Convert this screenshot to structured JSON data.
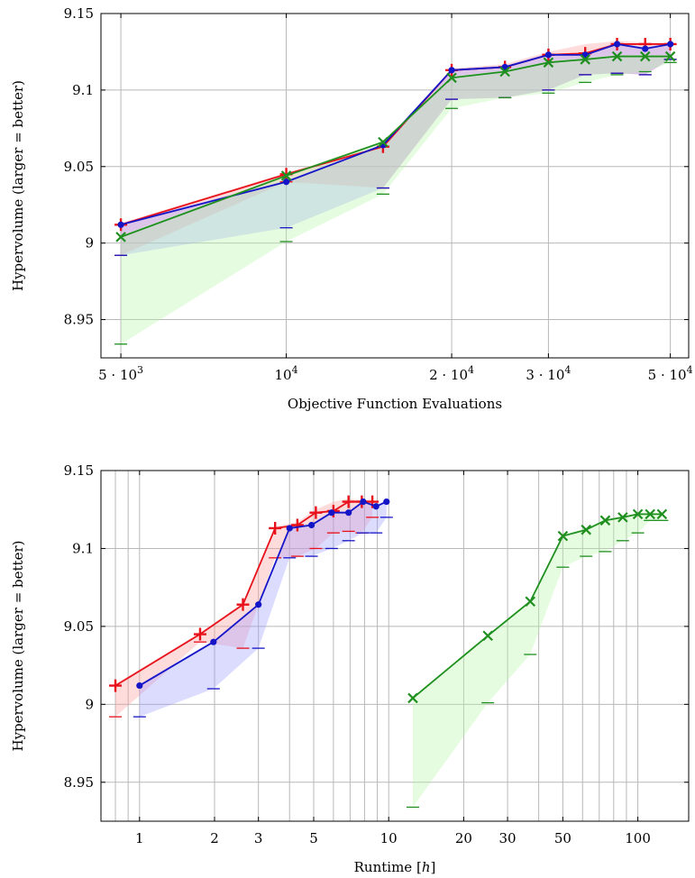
{
  "colors": {
    "red": "#e8101a",
    "blue": "#1515c8",
    "green": "#1f8f1f",
    "red_fill": "#ff9a9a",
    "blue_fill": "#9a9aff",
    "green_fill": "#b8f5a8",
    "grid": "#b8b8b8"
  },
  "chart_data": [
    {
      "type": "line",
      "xscale": "log",
      "xlabel": "Objective Function Evaluations",
      "ylabel": "Hypervolume (larger = better)",
      "xlim": [
        4600,
        54000
      ],
      "ylim": [
        8.925,
        9.15
      ],
      "x_ticks": [
        {
          "value": 5000,
          "label": "5 · 10³"
        },
        {
          "value": 10000,
          "label": "10⁴"
        },
        {
          "value": 20000,
          "label": "2 · 10⁴"
        },
        {
          "value": 30000,
          "label": "3 · 10⁴"
        },
        {
          "value": 50000,
          "label": "5 · 10⁴"
        }
      ],
      "x_grid": [
        5000,
        10000,
        20000,
        30000,
        50000
      ],
      "y_ticks": [
        {
          "value": 8.95,
          "label": "8.95"
        },
        {
          "value": 9.0,
          "label": "9"
        },
        {
          "value": 9.05,
          "label": "9.05"
        },
        {
          "value": 9.1,
          "label": "9.1"
        },
        {
          "value": 9.15,
          "label": "9.15"
        }
      ],
      "grid": true,
      "series": [
        {
          "color_key": "red",
          "marker": "plus",
          "x": [
            5000,
            10000,
            15000,
            20000,
            25000,
            30000,
            35000,
            40000,
            45000,
            50000
          ],
          "y": [
            9.012,
            9.045,
            9.063,
            9.113,
            9.115,
            9.123,
            9.124,
            9.13,
            9.13,
            9.13
          ],
          "lower": [
            8.992,
            9.04,
            9.036,
            9.094,
            9.095,
            9.1,
            9.11,
            9.111,
            9.11,
            9.12
          ],
          "upper": [
            9.013,
            9.046,
            9.064,
            9.114,
            9.117,
            9.125,
            9.13,
            9.132,
            9.131,
            9.131
          ]
        },
        {
          "color_key": "blue",
          "marker": "dot",
          "x": [
            5000,
            10000,
            15000,
            20000,
            25000,
            30000,
            35000,
            40000,
            45000,
            50000
          ],
          "y": [
            9.012,
            9.04,
            9.064,
            9.113,
            9.115,
            9.123,
            9.123,
            9.13,
            9.127,
            9.13
          ],
          "lower": [
            8.992,
            9.01,
            9.036,
            9.094,
            9.095,
            9.1,
            9.11,
            9.111,
            9.11,
            9.12
          ],
          "upper": [
            9.013,
            9.041,
            9.065,
            9.114,
            9.116,
            9.124,
            9.124,
            9.131,
            9.128,
            9.131
          ]
        },
        {
          "color_key": "green",
          "marker": "cross",
          "x": [
            5000,
            10000,
            15000,
            20000,
            25000,
            30000,
            35000,
            40000,
            45000,
            50000
          ],
          "y": [
            9.004,
            9.044,
            9.066,
            9.108,
            9.112,
            9.118,
            9.12,
            9.122,
            9.122,
            9.122
          ],
          "lower": [
            8.934,
            9.001,
            9.032,
            9.088,
            9.095,
            9.098,
            9.105,
            9.11,
            9.112,
            9.118
          ],
          "upper": [
            9.005,
            9.045,
            9.067,
            9.109,
            9.113,
            9.119,
            9.121,
            9.123,
            9.123,
            9.123
          ]
        }
      ]
    },
    {
      "type": "line",
      "xscale": "log",
      "xlabel": "Runtime [h]",
      "ylabel": "Hypervolume (larger = better)",
      "xlim": [
        0.7,
        160
      ],
      "ylim": [
        8.925,
        9.15
      ],
      "x_ticks": [
        {
          "value": 1,
          "label": "1"
        },
        {
          "value": 2,
          "label": "2"
        },
        {
          "value": 3,
          "label": "3"
        },
        {
          "value": 5,
          "label": "5"
        },
        {
          "value": 10,
          "label": "10"
        },
        {
          "value": 20,
          "label": "20"
        },
        {
          "value": 30,
          "label": "30"
        },
        {
          "value": 50,
          "label": "50"
        },
        {
          "value": 100,
          "label": "100"
        }
      ],
      "x_grid": [
        0.8,
        0.9,
        1,
        2,
        3,
        4,
        5,
        6,
        7,
        8,
        9,
        10,
        20,
        30,
        40,
        50,
        60,
        70,
        80,
        90,
        100
      ],
      "y_ticks": [
        {
          "value": 8.95,
          "label": "8.95"
        },
        {
          "value": 9.0,
          "label": "9"
        },
        {
          "value": 9.05,
          "label": "9.05"
        },
        {
          "value": 9.1,
          "label": "9.1"
        },
        {
          "value": 9.15,
          "label": "9.15"
        }
      ],
      "grid": true,
      "series": [
        {
          "color_key": "red",
          "marker": "plus",
          "x": [
            0.8,
            1.75,
            2.6,
            3.5,
            4.3,
            5.1,
            6.0,
            6.9,
            7.8,
            8.6
          ],
          "y": [
            9.012,
            9.045,
            9.064,
            9.113,
            9.115,
            9.123,
            9.124,
            9.13,
            9.13,
            9.13
          ],
          "lower": [
            8.992,
            9.04,
            9.036,
            9.094,
            9.095,
            9.1,
            9.11,
            9.111,
            9.11,
            9.12
          ],
          "upper": [
            9.013,
            9.046,
            9.065,
            9.114,
            9.117,
            9.125,
            9.13,
            9.132,
            9.131,
            9.131
          ]
        },
        {
          "color_key": "blue",
          "marker": "dot",
          "x": [
            1.0,
            1.98,
            3.0,
            4.0,
            4.9,
            5.9,
            6.9,
            7.9,
            8.9,
            9.8
          ],
          "y": [
            9.012,
            9.04,
            9.064,
            9.113,
            9.115,
            9.123,
            9.123,
            9.13,
            9.127,
            9.13
          ],
          "lower": [
            8.992,
            9.01,
            9.036,
            9.094,
            9.095,
            9.1,
            9.105,
            9.11,
            9.11,
            9.12
          ],
          "upper": [
            9.013,
            9.041,
            9.065,
            9.114,
            9.116,
            9.124,
            9.124,
            9.131,
            9.128,
            9.131
          ]
        },
        {
          "color_key": "green",
          "marker": "cross",
          "x": [
            12.5,
            25,
            37,
            50,
            62,
            74,
            87,
            100,
            112,
            125
          ],
          "y": [
            9.004,
            9.044,
            9.066,
            9.108,
            9.112,
            9.118,
            9.12,
            9.122,
            9.122,
            9.122
          ],
          "lower": [
            8.934,
            9.001,
            9.032,
            9.088,
            9.095,
            9.098,
            9.105,
            9.11,
            9.118,
            9.118
          ],
          "upper": [
            9.005,
            9.045,
            9.067,
            9.109,
            9.113,
            9.119,
            9.121,
            9.123,
            9.123,
            9.123
          ]
        }
      ]
    }
  ]
}
